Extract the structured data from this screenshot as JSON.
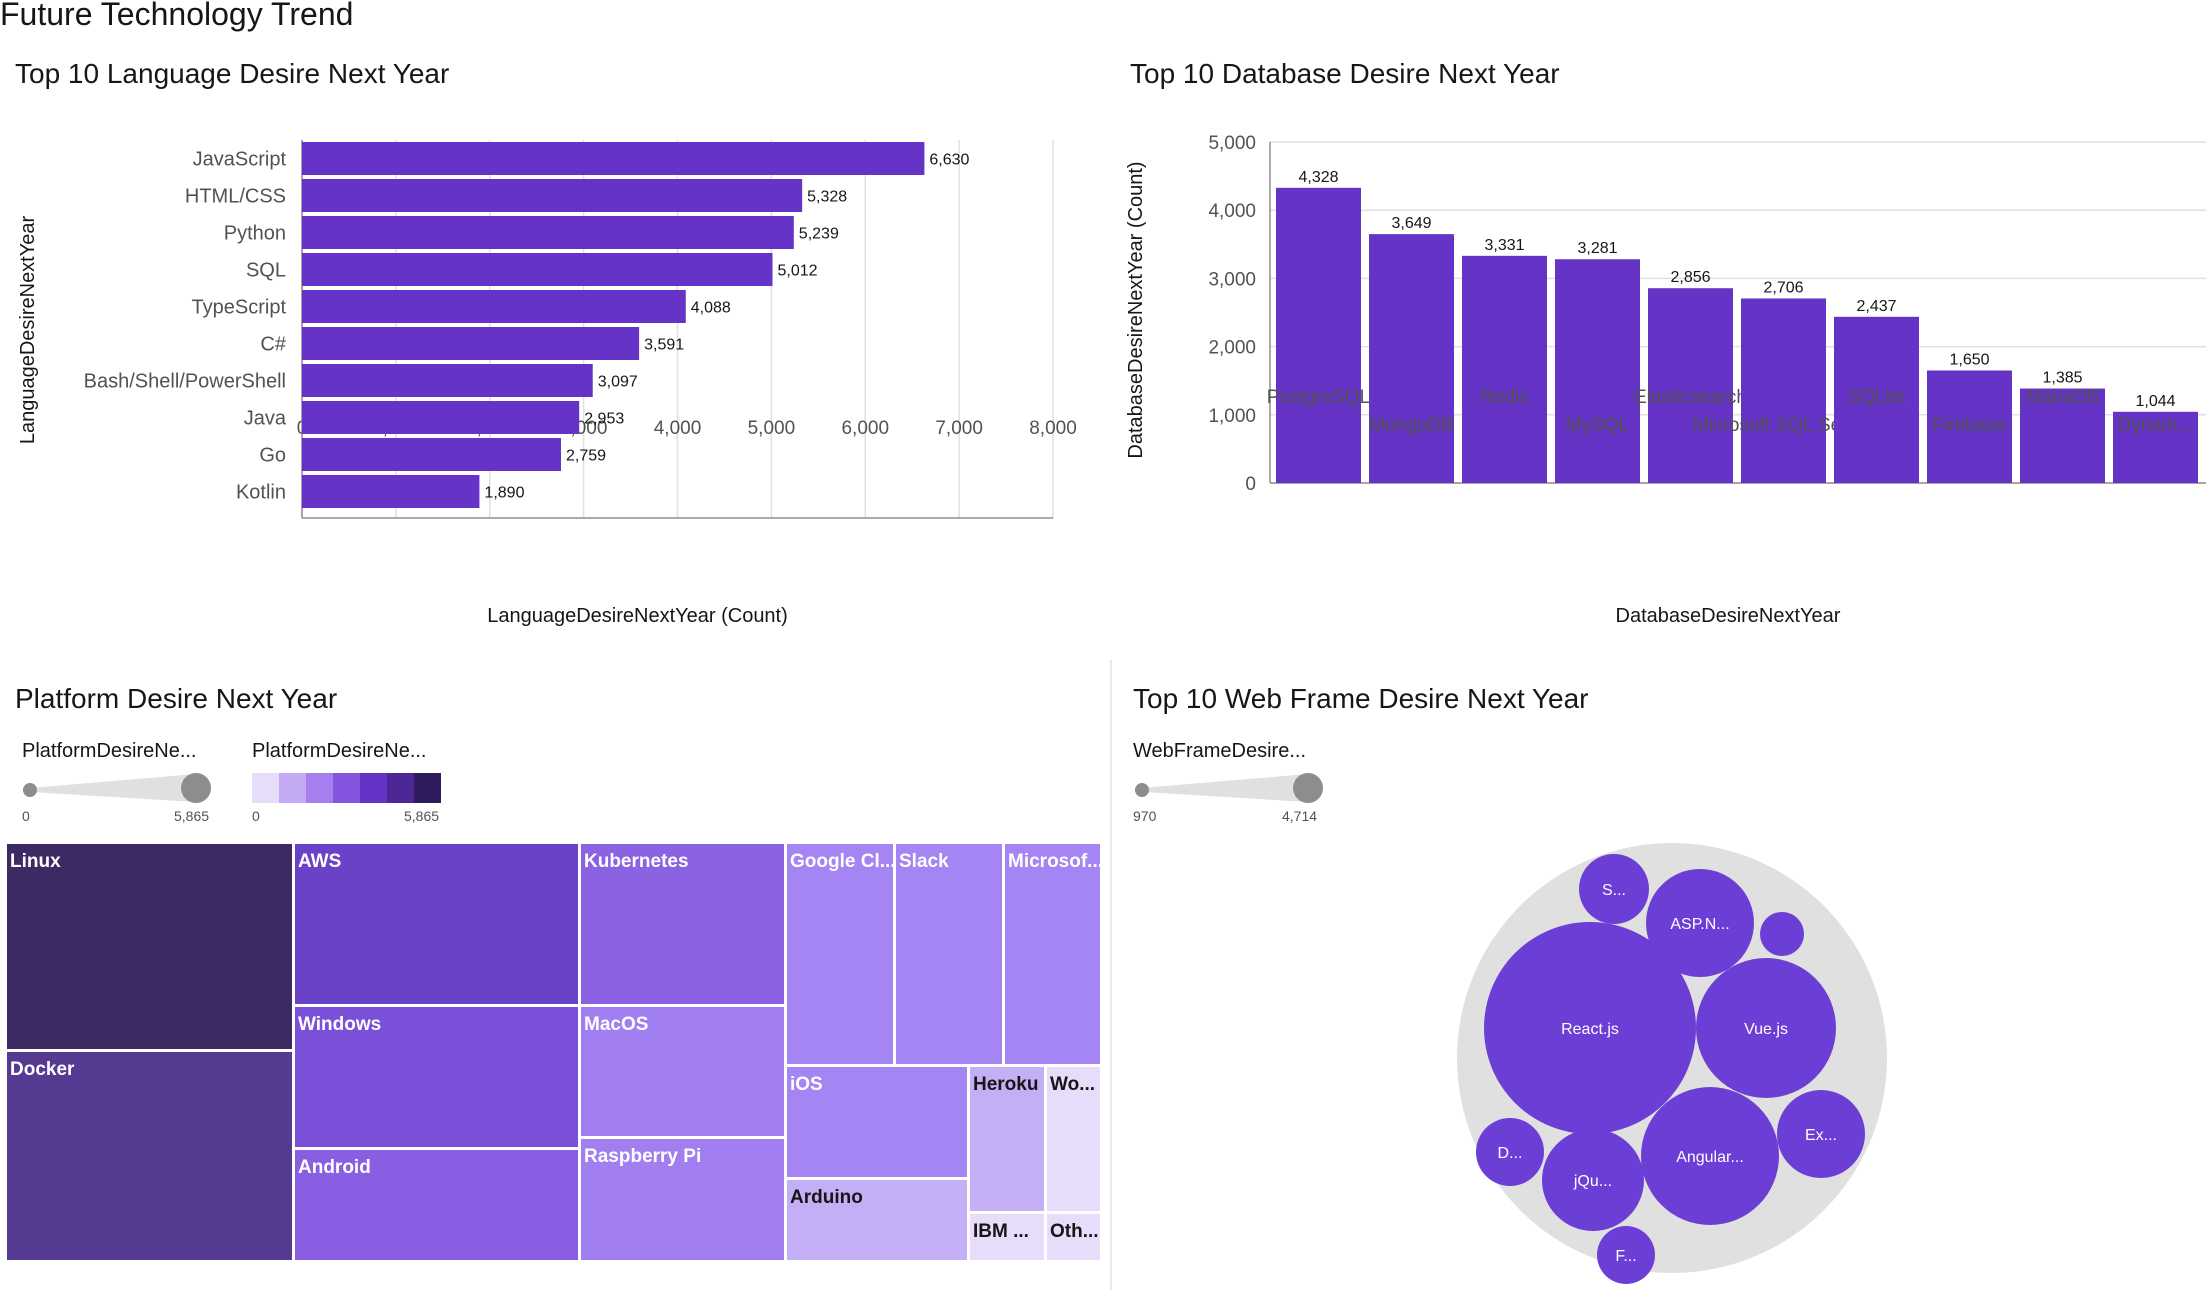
{
  "dashboard_title": "Future Technology Trend",
  "colors": {
    "bar": "#6534c7",
    "grid": "#e0e0e0",
    "axis": "#8d8d8d",
    "text": "#161616",
    "muted": "#525252",
    "bubble_bg": "#e0e0e0",
    "bubble": "#6b3ed6"
  },
  "chart_data": [
    {
      "id": "language",
      "type": "bar",
      "orientation": "horizontal",
      "title": "Top 10 Language Desire Next Year",
      "categories": [
        "JavaScript",
        "HTML/CSS",
        "Python",
        "SQL",
        "TypeScript",
        "C#",
        "Bash/Shell/PowerShell",
        "Java",
        "Go",
        "Kotlin"
      ],
      "values": [
        6630,
        5328,
        5239,
        5012,
        4088,
        3591,
        3097,
        2953,
        2759,
        1890
      ],
      "value_labels": [
        "6,630",
        "5,328",
        "5,239",
        "5,012",
        "4,088",
        "3,591",
        "3,097",
        "2,953",
        "2,759",
        "1,890"
      ],
      "xlabel": "LanguageDesireNextYear (Count)",
      "ylabel": "LanguageDesireNextYear",
      "xlim": [
        0,
        8000
      ],
      "xticks": [
        "0",
        "1,000",
        "2,000",
        "3,000",
        "4,000",
        "5,000",
        "6,000",
        "7,000",
        "8,000"
      ],
      "grid": true
    },
    {
      "id": "database",
      "type": "bar",
      "orientation": "vertical",
      "title": "Top 10 Database Desire Next Year",
      "categories": [
        "PostgreSQL",
        "MongoDB",
        "Redis",
        "MySQL",
        "Elasticsearch",
        "Microsoft SQL Server",
        "SQLite",
        "Firebase",
        "MariaDB",
        "Dynam..."
      ],
      "values": [
        4328,
        3649,
        3331,
        3281,
        2856,
        2706,
        2437,
        1650,
        1385,
        1044
      ],
      "value_labels": [
        "4,328",
        "3,649",
        "3,331",
        "3,281",
        "2,856",
        "2,706",
        "2,437",
        "1,650",
        "1,385",
        "1,044"
      ],
      "xlabel": "DatabaseDesireNextYear",
      "ylabel": "DatabaseDesireNextYear (Count)",
      "ylim": [
        0,
        5000
      ],
      "yticks": [
        "0",
        "1,000",
        "2,000",
        "3,000",
        "4,000",
        "5,000"
      ],
      "grid": true
    },
    {
      "id": "platform",
      "type": "treemap",
      "title": "Platform Desire Next Year",
      "size_legend": {
        "label": "PlatformDesireNe...",
        "min": "0",
        "max": "5,865"
      },
      "color_legend": {
        "label": "PlatformDesireNe...",
        "min": "0",
        "max": "5,865",
        "scale": [
          "#e8dcfb",
          "#c4a9f3",
          "#a57ef0",
          "#8655e0",
          "#6534c7",
          "#4b2896",
          "#2f1c5c"
        ]
      },
      "items": [
        {
          "label": "Linux",
          "color": "#3d2a63"
        },
        {
          "label": "Docker",
          "color": "#563a92"
        },
        {
          "label": "AWS",
          "color": "#6a42c8"
        },
        {
          "label": "Windows",
          "color": "#7b50d8"
        },
        {
          "label": "Android",
          "color": "#8a5ee3"
        },
        {
          "label": "Kubernetes",
          "color": "#8b62e2"
        },
        {
          "label": "MacOS",
          "color": "#a27ff0"
        },
        {
          "label": "Raspberry Pi",
          "color": "#a27ff0"
        },
        {
          "label": "Google Cl...",
          "color": "#a585f3"
        },
        {
          "label": "Slack",
          "color": "#a585f3"
        },
        {
          "label": "Microsof...",
          "color": "#a585f3"
        },
        {
          "label": "iOS",
          "color": "#a585f3"
        },
        {
          "label": "Arduino",
          "color": "#c4aef6"
        },
        {
          "label": "Heroku",
          "color": "#c4aef6"
        },
        {
          "label": "Wo...",
          "color": "#e8dcfb"
        },
        {
          "label": "IBM ...",
          "color": "#e8dcfb"
        },
        {
          "label": "Oth...",
          "color": "#e8dcfb"
        }
      ]
    },
    {
      "id": "webframe",
      "type": "bubble",
      "title": "Top 10 Web Frame Desire Next Year",
      "size_legend": {
        "label": "WebFrameDesire...",
        "min": "970",
        "max": "4,714"
      },
      "items": [
        {
          "label": "React.js"
        },
        {
          "label": "Vue.js"
        },
        {
          "label": "Angular..."
        },
        {
          "label": "ASP.N..."
        },
        {
          "label": "Ex..."
        },
        {
          "label": "jQu..."
        },
        {
          "label": "S..."
        },
        {
          "label": "D..."
        },
        {
          "label": "F..."
        },
        {
          "label": ""
        }
      ]
    }
  ]
}
